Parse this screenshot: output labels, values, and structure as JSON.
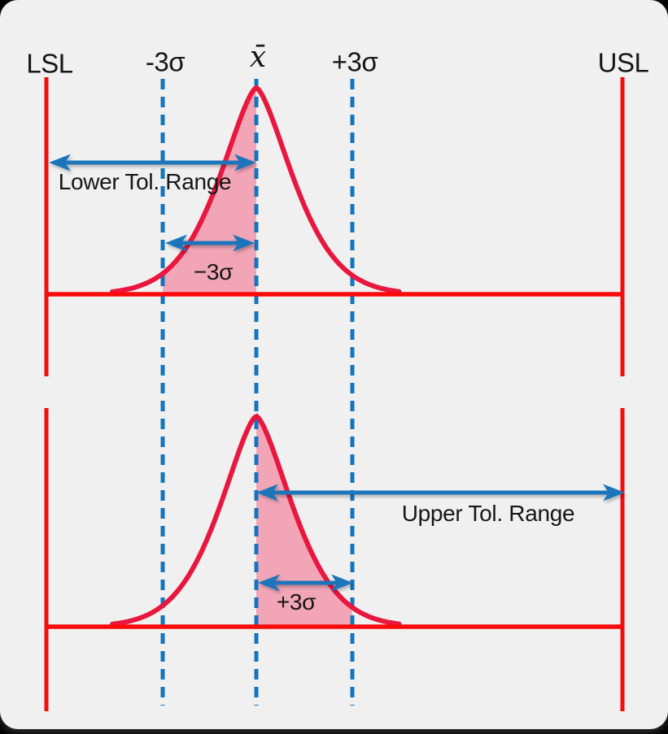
{
  "figure": {
    "type": "process-capability-tolerance-diagram",
    "charts": [
      {
        "position": "top",
        "shaded_region": "area under curve between -3σ and x̄",
        "range_arrow_label": "Lower Tol. Range",
        "range_arrow_span": "LSL to x̄",
        "sigma_arrow_label": "−3σ",
        "sigma_arrow_span": "-3σ to x̄"
      },
      {
        "position": "bottom",
        "shaded_region": "area under curve between x̄ and +3σ",
        "range_arrow_label": "Upper Tol. Range",
        "range_arrow_span": "x̄ to USL",
        "sigma_arrow_label": "+3σ",
        "sigma_arrow_span": "x̄ to +3σ"
      }
    ]
  },
  "axis_labels": {
    "lsl": "LSL",
    "minus_3_sigma": "-3σ",
    "mean": "x̄",
    "plus_3_sigma": "+3σ",
    "usl": "USL"
  },
  "colors": {
    "background": "#f0f0f1",
    "outside": "#000000",
    "limit_line_red": "#fa0a0a",
    "curve_red": "#e9173d",
    "shade_pink": "#f2a5b7",
    "gridline_blue": "#1474be",
    "arrow_blue": "#1b74bb",
    "text": "#161616"
  }
}
